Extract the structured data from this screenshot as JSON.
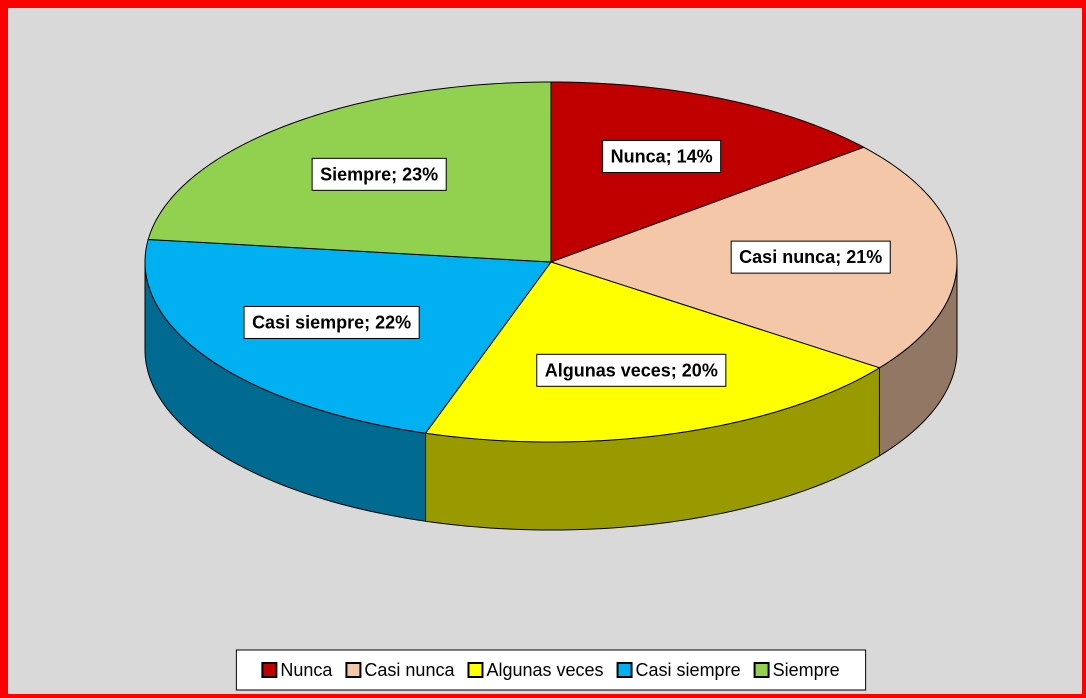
{
  "chart_data": {
    "type": "pie3d",
    "categories": [
      "Nunca",
      "Casi nunca",
      "Algunas veces",
      "Casi siempre",
      "Siempre"
    ],
    "values": [
      14,
      21,
      20,
      22,
      23
    ],
    "value_labels": [
      "Nunca; 14%",
      "Casi nunca; 21%",
      "Algunas veces; 20%",
      "Casi siempre; 22%",
      "Siempre; 23%"
    ],
    "colors": [
      "#c00000",
      "#f4c7a9",
      "#ffff00",
      "#00b0f0",
      "#92d050"
    ],
    "legend": "bottom"
  }
}
